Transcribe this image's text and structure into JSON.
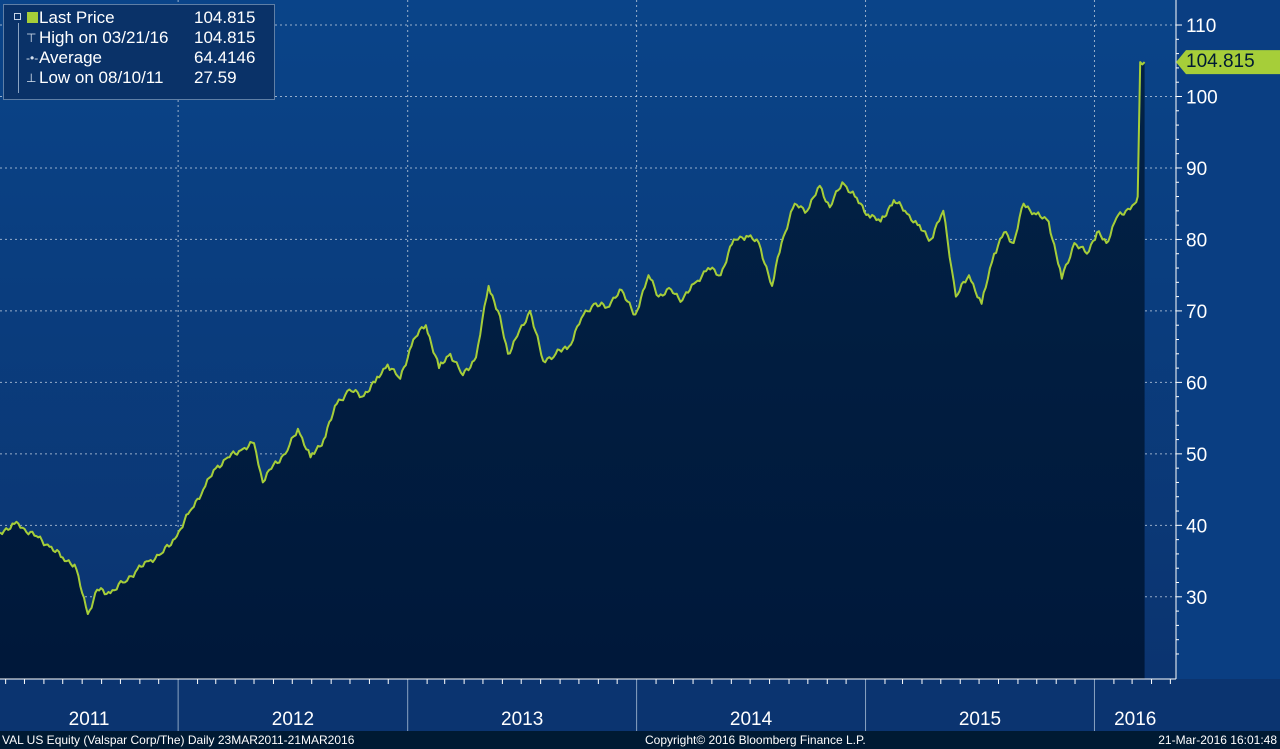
{
  "legend": {
    "rows": [
      {
        "label": "Last Price",
        "value": "104.815"
      },
      {
        "label": "High on 03/21/16",
        "value": "104.815"
      },
      {
        "label": "Average",
        "value": "64.4146"
      },
      {
        "label": "Low on 08/10/11",
        "value": "27.59"
      }
    ]
  },
  "last_price_badge": "104.815",
  "footer": {
    "left": "VAL US Equity (Valspar Corp/The)  Daily 23MAR2011-21MAR2016",
    "center": "Copyright© 2016 Bloomberg Finance L.P.",
    "right": "21-Mar-2016 16:01:48"
  },
  "colors": {
    "background_top": "#0a4489",
    "background_bottom": "#001a33",
    "line": "#a6ce39",
    "area_fill": "#001e3f",
    "grid": "#c8d4e3"
  },
  "chart_data": {
    "type": "line",
    "series": [
      {
        "name": "Last Price",
        "x": [
          "2011-03-23",
          "2011-04-15",
          "2011-05-01",
          "2011-05-20",
          "2011-06-10",
          "2011-07-01",
          "2011-07-20",
          "2011-08-10",
          "2011-08-25",
          "2011-09-15",
          "2011-10-05",
          "2011-10-25",
          "2011-11-15",
          "2011-12-05",
          "2011-12-30",
          "2012-01-20",
          "2012-02-10",
          "2012-03-01",
          "2012-03-20",
          "2012-04-10",
          "2012-05-01",
          "2012-05-15",
          "2012-06-01",
          "2012-06-20",
          "2012-07-10",
          "2012-07-30",
          "2012-08-20",
          "2012-09-10",
          "2012-09-30",
          "2012-10-20",
          "2012-11-10",
          "2012-11-30",
          "2012-12-20",
          "2013-01-10",
          "2013-01-30",
          "2013-02-20",
          "2013-03-10",
          "2013-03-30",
          "2013-04-20",
          "2013-05-10",
          "2013-05-25",
          "2013-06-10",
          "2013-06-25",
          "2013-07-15",
          "2013-08-05",
          "2013-08-25",
          "2013-09-15",
          "2013-10-05",
          "2013-10-25",
          "2013-11-15",
          "2013-12-05",
          "2013-12-30",
          "2014-01-20",
          "2014-02-05",
          "2014-02-25",
          "2014-03-15",
          "2014-04-05",
          "2014-04-25",
          "2014-05-15",
          "2014-06-05",
          "2014-06-25",
          "2014-07-15",
          "2014-08-05",
          "2014-08-20",
          "2014-09-10",
          "2014-09-30",
          "2014-10-20",
          "2014-11-05",
          "2014-11-25",
          "2014-12-15",
          "2015-01-05",
          "2015-01-25",
          "2015-02-15",
          "2015-03-05",
          "2015-03-25",
          "2015-04-15",
          "2015-05-05",
          "2015-05-25",
          "2015-06-15",
          "2015-07-05",
          "2015-07-25",
          "2015-08-10",
          "2015-08-25",
          "2015-09-10",
          "2015-09-30",
          "2015-10-20",
          "2015-11-10",
          "2015-11-30",
          "2015-12-20",
          "2016-01-05",
          "2016-01-20",
          "2016-02-05",
          "2016-02-20",
          "2016-03-05",
          "2016-03-10",
          "2016-03-14",
          "2016-03-21"
        ],
        "y": [
          39.0,
          40.2,
          39.5,
          38.5,
          37.0,
          35.5,
          34.5,
          27.59,
          31.0,
          30.5,
          32.0,
          33.5,
          35.0,
          36.0,
          38.5,
          42.0,
          45.0,
          48.0,
          49.5,
          50.5,
          51.5,
          46.0,
          48.5,
          50.0,
          53.5,
          49.5,
          52.0,
          57.0,
          59.0,
          58.0,
          60.0,
          62.5,
          60.5,
          66.0,
          68.0,
          62.0,
          64.0,
          61.0,
          63.5,
          73.5,
          70.0,
          64.0,
          66.5,
          70.0,
          63.0,
          64.0,
          65.0,
          69.0,
          71.0,
          70.5,
          73.0,
          69.5,
          75.0,
          72.0,
          73.0,
          71.5,
          74.0,
          76.0,
          75.0,
          80.0,
          80.5,
          79.5,
          73.5,
          79.5,
          85.0,
          84.0,
          87.5,
          84.5,
          88.0,
          86.0,
          83.5,
          82.5,
          85.5,
          84.0,
          82.0,
          80.0,
          84.0,
          72.0,
          75.0,
          71.0,
          78.0,
          81.0,
          79.5,
          85.0,
          83.5,
          82.5,
          74.5,
          79.5,
          78.0,
          81.0,
          79.5,
          83.0,
          84.0,
          85.0,
          86.0,
          104.815,
          104.815
        ]
      }
    ],
    "x_ticks": [
      "2011",
      "2012",
      "2013",
      "2014",
      "2015",
      "2016"
    ],
    "y_ticks": [
      30,
      40,
      50,
      60,
      70,
      80,
      90,
      100,
      110
    ],
    "ylim": [
      18.5,
      113.5
    ],
    "xlim": [
      "2011-03-23",
      "2016-05-10"
    ],
    "grid": true,
    "legend_position": "top-left",
    "y_axis_side": "right"
  }
}
